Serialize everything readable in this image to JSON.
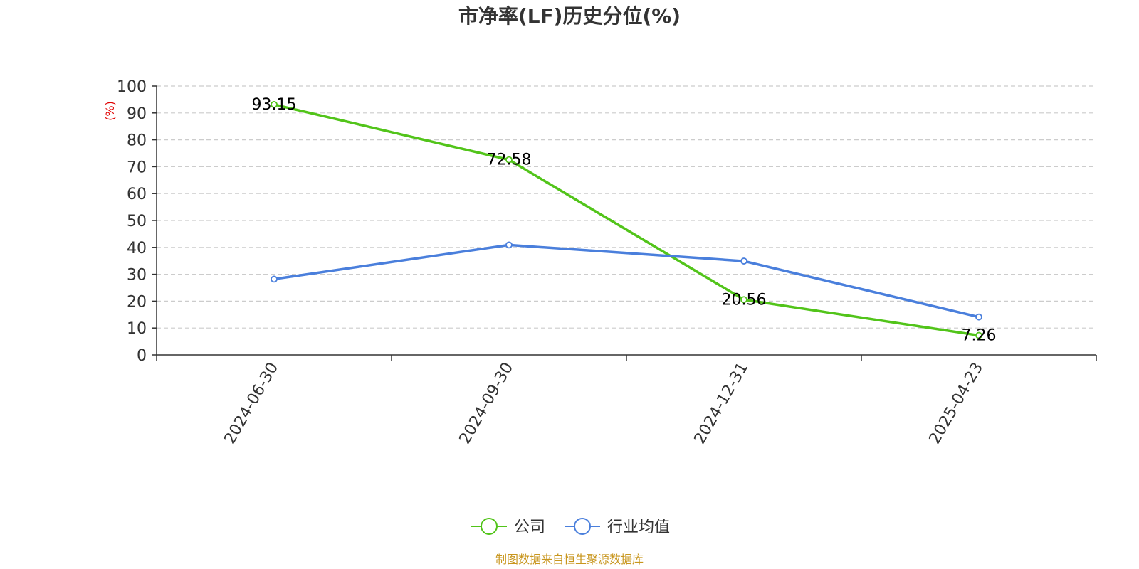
{
  "chart_data": {
    "type": "line",
    "title": "市净率(LF)历史分位(%)",
    "y_unit": "(%)",
    "categories": [
      "2024-06-30",
      "2024-09-30",
      "2024-12-31",
      "2025-04-23"
    ],
    "ylim": [
      0,
      100
    ],
    "y_ticks": [
      0,
      10,
      20,
      30,
      40,
      50,
      60,
      70,
      80,
      90,
      100
    ],
    "grid": true,
    "legend_position": "bottom",
    "series": [
      {
        "name": "公司",
        "color": "#52c41a",
        "values": [
          93.15,
          72.58,
          20.56,
          7.26
        ],
        "show_labels": true
      },
      {
        "name": "行业均值",
        "color": "#4a7fdc",
        "values": [
          28.2,
          40.9,
          34.9,
          14.1
        ],
        "show_labels": false
      }
    ],
    "source": "制图数据来自恒生聚源数据库"
  }
}
